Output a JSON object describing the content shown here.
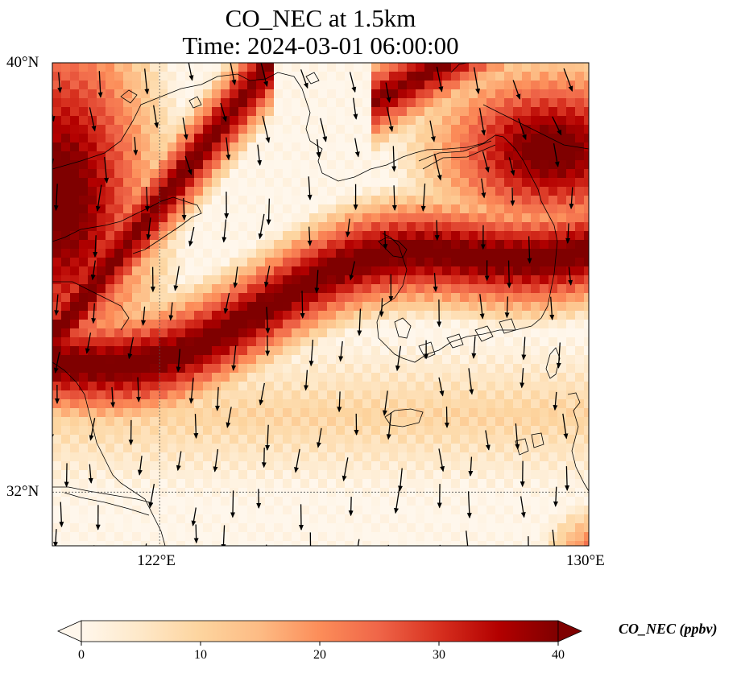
{
  "figure": {
    "title_line1": "CO_NEC at 1.5km",
    "title_line2": "Time: 2024-03-01 06:00:00"
  },
  "map": {
    "extent": {
      "lon_min": 120,
      "lon_max": 130,
      "lat_min": 31,
      "lat_max": 40
    },
    "gridlines": {
      "lons": [
        122
      ],
      "lats": [
        32
      ],
      "style": "dotted"
    },
    "lon_ticks": [
      {
        "value": 122,
        "label": "122°E"
      },
      {
        "value": 130,
        "label": "130°E"
      }
    ],
    "lat_ticks": [
      {
        "value": 40,
        "label": "40°N"
      },
      {
        "value": 32,
        "label": "32°N"
      }
    ],
    "layers": [
      "CO_NEC concentration field (pixelated grid)",
      "coastlines",
      "wind vectors"
    ],
    "field": "CO_NEC",
    "level": "1.5km"
  },
  "colorbar": {
    "label": "CO_NEC (ppbv)",
    "min": 0,
    "max": 40,
    "ticks": [
      0,
      10,
      20,
      30,
      40
    ],
    "extend": "both",
    "colormap": "OrRd",
    "colors": [
      "#fff7ec",
      "#fee8c8",
      "#fdd49e",
      "#fdbb84",
      "#fc8d59",
      "#ef6548",
      "#d7301f",
      "#b30000",
      "#7f0000"
    ]
  },
  "chart_data": {
    "type": "heatmap",
    "field": "CO_NEC",
    "units": "ppbv",
    "description_of_pattern": "High-concentration band (~40 ppbv) spans west-to-east across about 34-36°N and along the northern margins; low values (0-5 ppbv) over the southern and central Yellow Sea areas.",
    "wind_direction_dominant": "north-to-south (southward) winds"
  }
}
